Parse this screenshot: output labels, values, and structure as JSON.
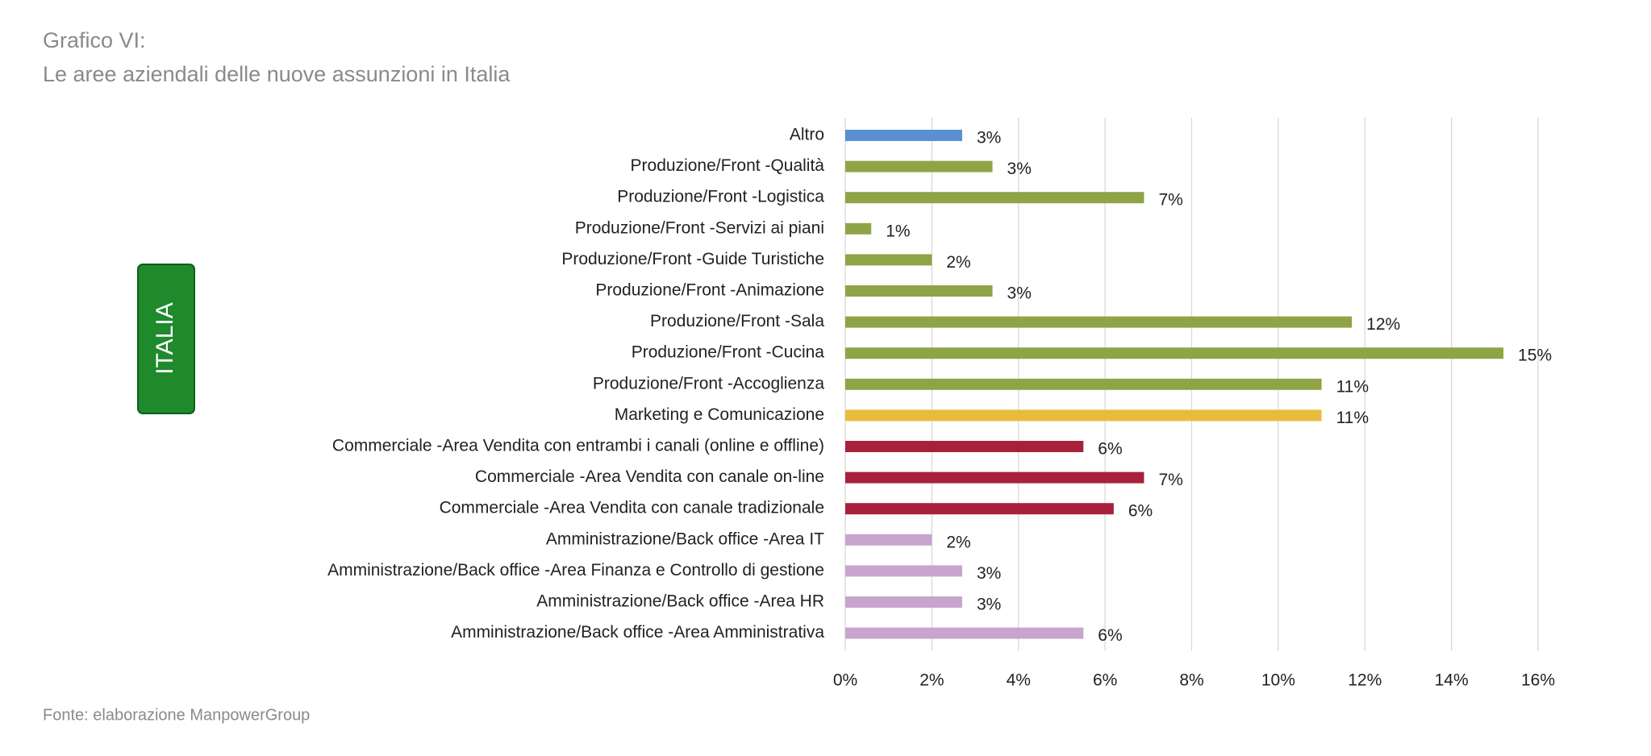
{
  "header": {
    "title": "Grafico VI:",
    "subtitle": "Le aree aziendali delle nuove assunzioni in Italia"
  },
  "badge": "ITALIA",
  "source": "Fonte: elaborazione ManpowerGroup",
  "chart_data": {
    "type": "hbar",
    "categories": [
      "Altro",
      "Produzione/Front -Qualità",
      "Produzione/Front -Logistica",
      "Produzione/Front -Servizi ai piani",
      "Produzione/Front -Guide Turistiche",
      "Produzione/Front -Animazione",
      "Produzione/Front -Sala",
      "Produzione/Front -Cucina",
      "Produzione/Front -Accoglienza",
      "Marketing e Comunicazione",
      "Commerciale -Area Vendita con entrambi i canali (online e offline)",
      "Commerciale -Area Vendita con canale on-line",
      "Commerciale -Area Vendita con canale tradizionale",
      "Amministrazione/Back office -Area IT",
      "Amministrazione/Back office -Area Finanza e Controllo di gestione",
      "Amministrazione/Back office -Area HR",
      "Amministrazione/Back office -Area Amministrativa"
    ],
    "values": [
      2.7,
      3.4,
      6.9,
      0.6,
      2.0,
      3.4,
      11.7,
      15.2,
      11.0,
      11.0,
      5.5,
      6.9,
      6.2,
      2.0,
      2.7,
      2.7,
      5.5
    ],
    "value_labels": [
      "3%",
      "3%",
      "7%",
      "1%",
      "2%",
      "3%",
      "12%",
      "15%",
      "11%",
      "11%",
      "6%",
      "7%",
      "6%",
      "2%",
      "3%",
      "3%",
      "6%"
    ],
    "colors": [
      "#5b8fd0",
      "#8fa446",
      "#8fa446",
      "#8fa446",
      "#8fa446",
      "#8fa446",
      "#8fa446",
      "#8fa446",
      "#8fa446",
      "#e9bb3d",
      "#a8213a",
      "#a8213a",
      "#a8213a",
      "#c9a4cf",
      "#c9a4cf",
      "#c9a4cf",
      "#c9a4cf"
    ],
    "xlim": [
      0,
      16
    ],
    "xticks": [
      {
        "value": 0,
        "label": "0%"
      },
      {
        "value": 2,
        "label": "2%"
      },
      {
        "value": 4,
        "label": "4%"
      },
      {
        "value": 6,
        "label": "6%"
      },
      {
        "value": 8,
        "label": "8%"
      },
      {
        "value": 10,
        "label": "10%"
      },
      {
        "value": 12,
        "label": "12%"
      },
      {
        "value": 14,
        "label": "14%"
      },
      {
        "value": 16,
        "label": "16%"
      }
    ],
    "grid": true
  }
}
